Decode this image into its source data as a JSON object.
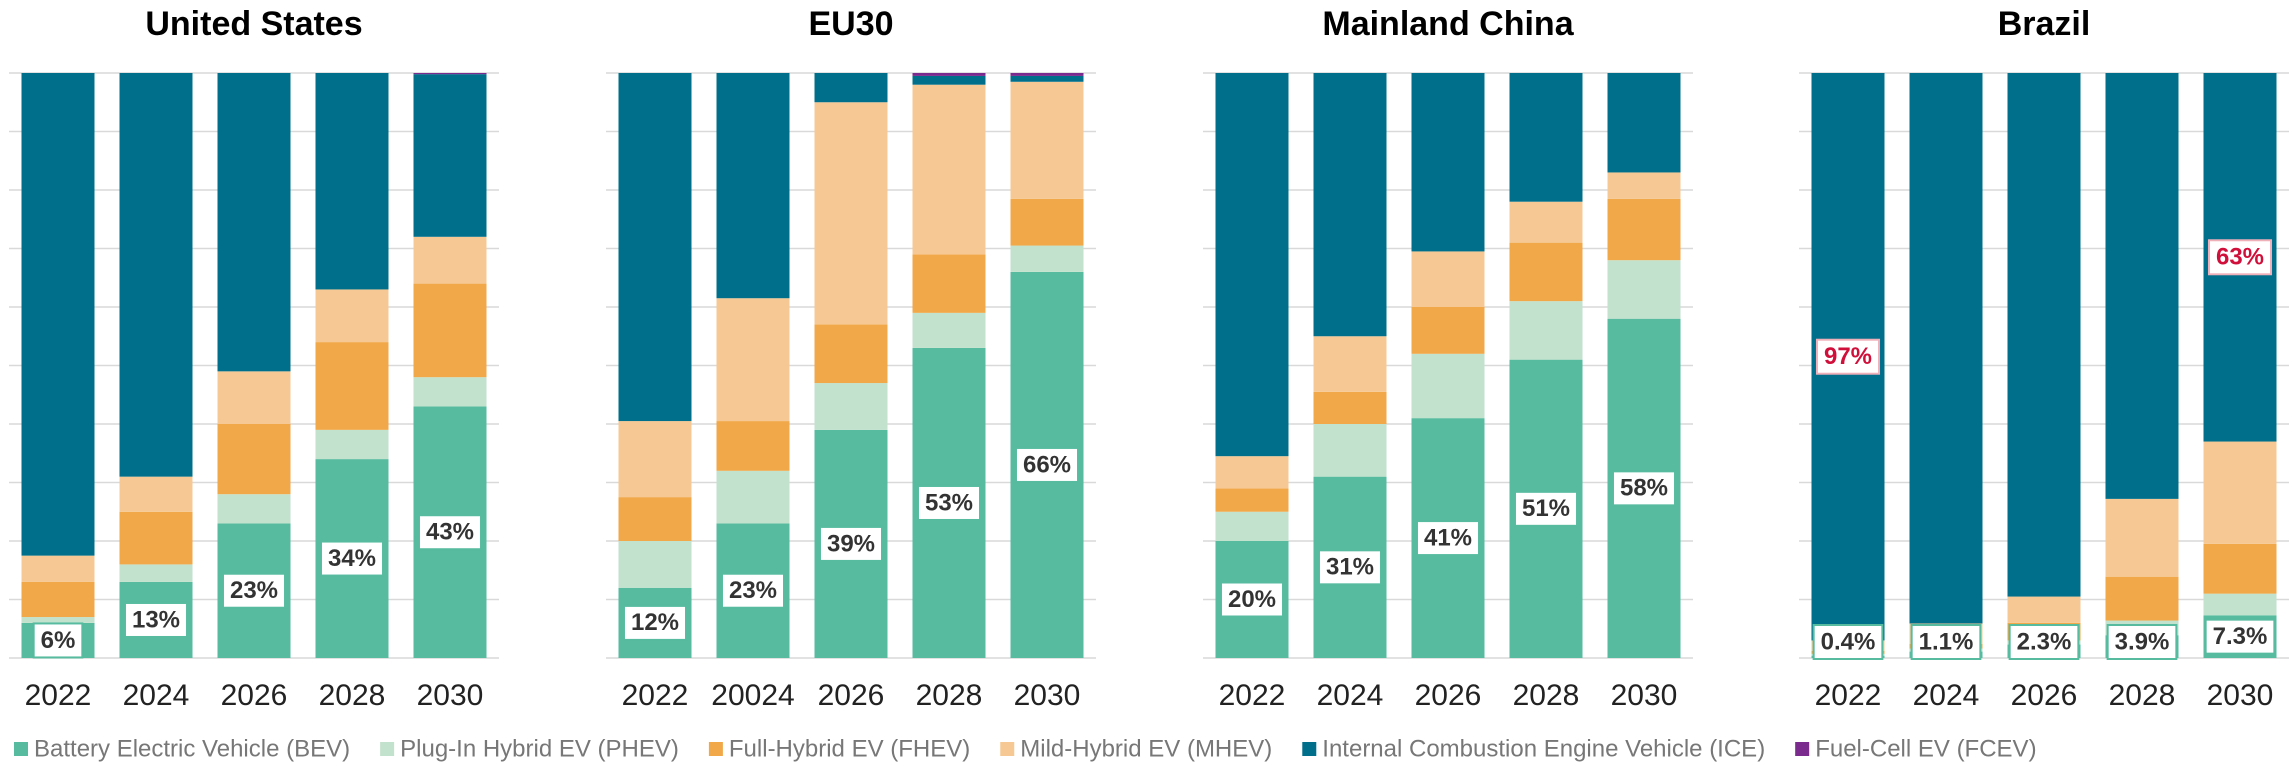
{
  "chart_data": [
    {
      "type": "bar",
      "stacked": true,
      "title": "United States",
      "categories": [
        "2022",
        "2024",
        "2026",
        "2028",
        "2030"
      ],
      "ylim": [
        0,
        100
      ],
      "yticks": [
        0,
        10,
        20,
        30,
        40,
        50,
        60,
        70,
        80,
        90,
        100
      ],
      "grid": true,
      "series": [
        {
          "name": "Battery Electric Vehicle (BEV)",
          "color": "#56bb9f",
          "values": [
            6,
            13,
            23,
            34,
            43
          ],
          "value_labels": [
            "6%",
            "13%",
            "23%",
            "34%",
            "43%"
          ]
        },
        {
          "name": "Plug-In Hybrid EV (PHEV)",
          "color": "#c3e2cd",
          "values": [
            1,
            3,
            5,
            5,
            5
          ]
        },
        {
          "name": "Full-Hybrid EV (FHEV)",
          "color": "#f0a848",
          "values": [
            6,
            9,
            12,
            15,
            16
          ]
        },
        {
          "name": "Mild-Hybrid EV (MHEV)",
          "color": "#f6c994",
          "values": [
            4.5,
            6,
            9,
            9,
            8
          ]
        },
        {
          "name": "Internal Combustion Engine Vehicle (ICE)",
          "color": "#006f8b",
          "values": [
            82.5,
            69,
            51,
            37,
            27.8
          ]
        },
        {
          "name": "Fuel-Cell EV (FCEV)",
          "color": "#7b2a8e",
          "values": [
            0,
            0,
            0,
            0,
            0.2
          ]
        }
      ]
    },
    {
      "type": "bar",
      "stacked": true,
      "title": "EU30",
      "categories": [
        "2022",
        "20024",
        "2026",
        "2028",
        "2030"
      ],
      "ylim": [
        0,
        100
      ],
      "yticks": [
        0,
        10,
        20,
        30,
        40,
        50,
        60,
        70,
        80,
        90,
        100
      ],
      "grid": true,
      "series": [
        {
          "name": "Battery Electric Vehicle (BEV)",
          "color": "#56bb9f",
          "values": [
            12,
            23,
            39,
            53,
            66
          ],
          "value_labels": [
            "12%",
            "23%",
            "39%",
            "53%",
            "66%"
          ]
        },
        {
          "name": "Plug-In Hybrid EV (PHEV)",
          "color": "#c3e2cd",
          "values": [
            8,
            9,
            8,
            6,
            4.5
          ]
        },
        {
          "name": "Full-Hybrid EV (FHEV)",
          "color": "#f0a848",
          "values": [
            7.5,
            8.5,
            10,
            10,
            8
          ]
        },
        {
          "name": "Mild-Hybrid EV (MHEV)",
          "color": "#f6c994",
          "values": [
            13,
            21,
            38,
            29,
            20
          ]
        },
        {
          "name": "Internal Combustion Engine Vehicle (ICE)",
          "color": "#006f8b",
          "values": [
            59.5,
            38.5,
            5,
            1.5,
            1
          ]
        },
        {
          "name": "Fuel-Cell EV (FCEV)",
          "color": "#7b2a8e",
          "values": [
            0,
            0,
            0,
            0.5,
            0.5
          ]
        }
      ]
    },
    {
      "type": "bar",
      "stacked": true,
      "title": "Mainland China",
      "categories": [
        "2022",
        "2024",
        "2026",
        "2028",
        "2030"
      ],
      "ylim": [
        0,
        100
      ],
      "yticks": [
        0,
        10,
        20,
        30,
        40,
        50,
        60,
        70,
        80,
        90,
        100
      ],
      "grid": true,
      "series": [
        {
          "name": "Battery Electric Vehicle (BEV)",
          "color": "#56bb9f",
          "values": [
            20,
            31,
            41,
            51,
            58
          ],
          "value_labels": [
            "20%",
            "31%",
            "41%",
            "51%",
            "58%"
          ]
        },
        {
          "name": "Plug-In Hybrid EV (PHEV)",
          "color": "#c3e2cd",
          "values": [
            5,
            9,
            11,
            10,
            10
          ]
        },
        {
          "name": "Full-Hybrid EV (FHEV)",
          "color": "#f0a848",
          "values": [
            4,
            5.5,
            8,
            10,
            10.5
          ]
        },
        {
          "name": "Mild-Hybrid EV (MHEV)",
          "color": "#f6c994",
          "values": [
            5.5,
            9.5,
            9.5,
            7,
            4.5
          ]
        },
        {
          "name": "Internal Combustion Engine Vehicle (ICE)",
          "color": "#006f8b",
          "values": [
            65.5,
            45,
            30.5,
            22,
            17
          ]
        },
        {
          "name": "Fuel-Cell EV (FCEV)",
          "color": "#7b2a8e",
          "values": [
            0,
            0,
            0,
            0,
            0
          ]
        }
      ]
    },
    {
      "type": "bar",
      "stacked": true,
      "title": "Brazil",
      "categories": [
        "2022",
        "2024",
        "2026",
        "2028",
        "2030"
      ],
      "ylim": [
        0,
        100
      ],
      "yticks": [
        0,
        10,
        20,
        30,
        40,
        50,
        60,
        70,
        80,
        90,
        100
      ],
      "grid": true,
      "series": [
        {
          "name": "Battery Electric Vehicle (BEV)",
          "color": "#56bb9f",
          "values": [
            0.4,
            1.1,
            2.3,
            3.9,
            7.3
          ],
          "value_labels": [
            "0.4%",
            "1.1%",
            "2.3%",
            "3.9%",
            "7.3%"
          ]
        },
        {
          "name": "Plug-In Hybrid EV (PHEV)",
          "color": "#c3e2cd",
          "values": [
            0.3,
            0.5,
            0.7,
            2.5,
            3.7
          ]
        },
        {
          "name": "Full-Hybrid EV (FHEV)",
          "color": "#f0a848",
          "values": [
            0.5,
            0.8,
            3,
            7.5,
            8.5
          ]
        },
        {
          "name": "Mild-Hybrid EV (MHEV)",
          "color": "#f6c994",
          "values": [
            1.8,
            3.5,
            4.5,
            13.3,
            17.5
          ]
        },
        {
          "name": "Internal Combustion Engine Vehicle (ICE)",
          "color": "#006f8b",
          "values": [
            97,
            94.1,
            89.5,
            72.8,
            63
          ],
          "value_labels": [
            "97%",
            null,
            null,
            null,
            "63%"
          ]
        },
        {
          "name": "Fuel-Cell EV (FCEV)",
          "color": "#7b2a8e",
          "values": [
            0,
            0,
            0,
            0,
            0
          ]
        }
      ]
    }
  ]
}
